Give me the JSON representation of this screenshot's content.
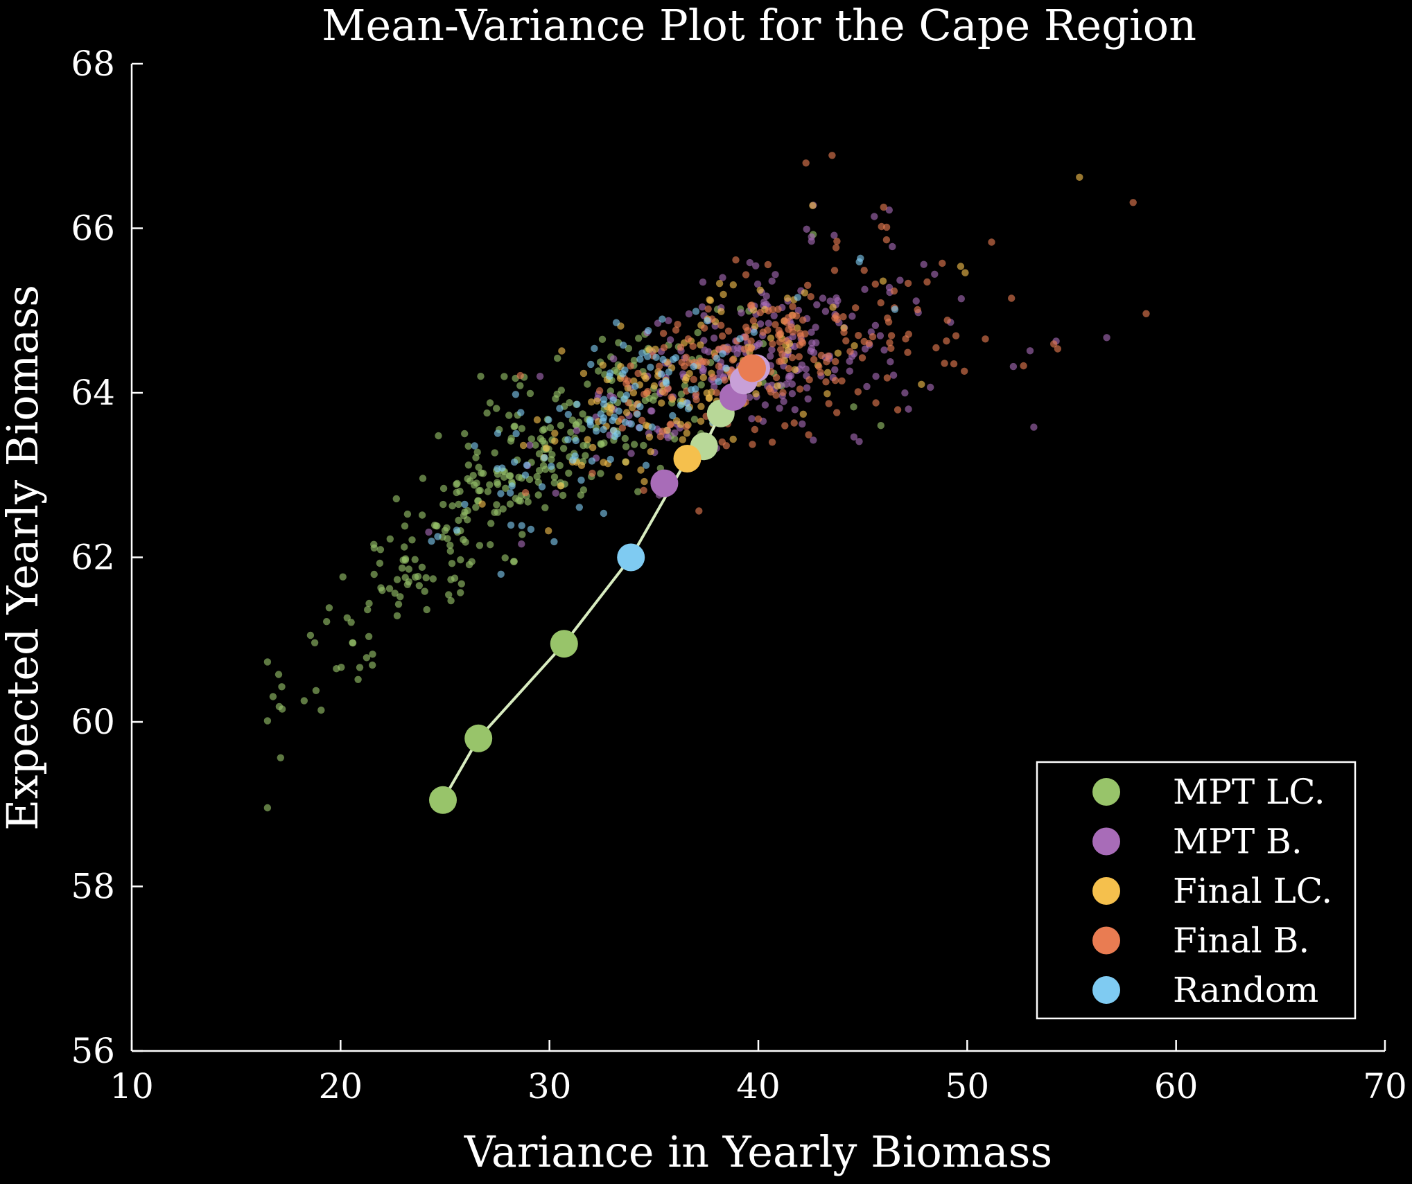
{
  "chart_data": {
    "type": "scatter",
    "title": "Mean-Variance Plot for the Cape Region",
    "xlabel": "Variance in Yearly Biomass",
    "ylabel": "Expected Yearly Biomass",
    "xlim": [
      10,
      70
    ],
    "ylim": [
      56,
      68
    ],
    "xticks": [
      10,
      20,
      30,
      40,
      50,
      60,
      70
    ],
    "yticks": [
      56,
      58,
      60,
      62,
      64,
      66,
      68
    ],
    "grid": false,
    "legend_position": "bottom-right",
    "series": [
      {
        "name": "MPT LC.",
        "color": "#98c46a",
        "frontier": [
          [
            24.9,
            59.05
          ],
          [
            26.6,
            59.8
          ],
          [
            30.7,
            60.95
          ],
          [
            37.4,
            63.35
          ],
          [
            38.2,
            63.75
          ]
        ],
        "cloud_center": [
          27.5,
          60.3
        ],
        "cloud_count": 320
      },
      {
        "name": "MPT B.",
        "color": "#a86cb8",
        "frontier": [
          [
            35.5,
            62.9
          ],
          [
            38.8,
            63.95
          ],
          [
            39.3,
            64.15
          ],
          [
            39.9,
            64.3
          ]
        ],
        "cloud_center": [
          39.5,
          64.0
        ],
        "cloud_count": 260
      },
      {
        "name": "Final LC.",
        "color": "#f5c04d",
        "frontier": [
          [
            36.6,
            63.2
          ]
        ],
        "cloud_center": [
          36.0,
          63.3
        ],
        "cloud_count": 150
      },
      {
        "name": "Final B.",
        "color": "#e97c52",
        "frontier": [
          [
            39.7,
            64.3
          ]
        ],
        "cloud_center": [
          40.0,
          64.1
        ],
        "cloud_count": 220
      },
      {
        "name": "Random",
        "color": "#7fcbf2",
        "frontier": [
          [
            33.9,
            62.0
          ]
        ],
        "cloud_center": [
          33.0,
          62.4
        ],
        "cloud_count": 110
      }
    ],
    "frontier_line": {
      "color": "#d8ecc0",
      "points": [
        [
          24.9,
          59.05
        ],
        [
          26.6,
          59.8
        ],
        [
          30.7,
          60.95
        ],
        [
          33.9,
          62.0
        ],
        [
          36.6,
          63.2
        ],
        [
          37.4,
          63.35
        ],
        [
          38.2,
          63.75
        ],
        [
          38.8,
          63.95
        ],
        [
          39.3,
          64.15
        ],
        [
          39.9,
          64.3
        ]
      ]
    }
  }
}
